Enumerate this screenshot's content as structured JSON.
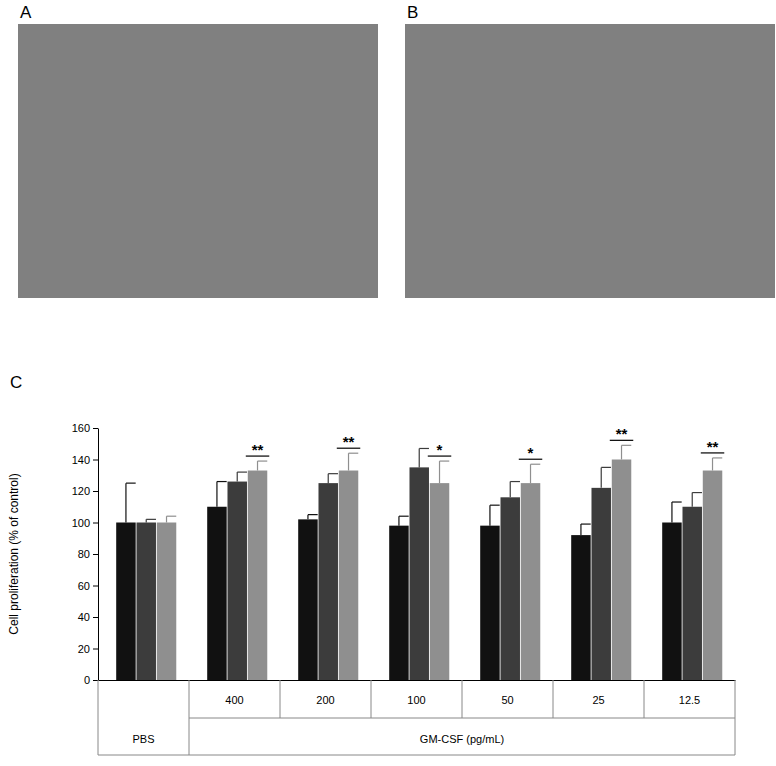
{
  "panel_labels": [
    "A",
    "B",
    "C"
  ],
  "chart_data": {
    "type": "bar",
    "y_label": "Cell proliferation (% of control)",
    "group_label": "GM-CSF (pg/mL)",
    "categories": [
      "PBS",
      "400",
      "200",
      "100",
      "50",
      "25",
      "12.5"
    ],
    "series": [
      {
        "color": "#111111",
        "values": [
          100,
          110,
          102,
          98,
          98,
          92,
          100
        ],
        "errors": [
          25,
          16,
          3,
          6,
          13,
          7,
          13
        ]
      },
      {
        "color": "#3c3c3c",
        "values": [
          100,
          126,
          125,
          135,
          116,
          122,
          110
        ],
        "errors": [
          2,
          6,
          6,
          12,
          10,
          13,
          9
        ]
      },
      {
        "color": "#8f8f8f",
        "values": [
          100,
          133,
          133,
          125,
          125,
          140,
          133
        ],
        "errors": [
          4,
          6,
          11,
          14,
          12,
          9,
          8
        ]
      }
    ],
    "annotations": [
      {
        "category": 1,
        "series": 2,
        "text": "**"
      },
      {
        "category": 2,
        "series": 2,
        "text": "**"
      },
      {
        "category": 3,
        "series": 2,
        "text": "*"
      },
      {
        "category": 4,
        "series": 2,
        "text": "*"
      },
      {
        "category": 5,
        "series": 2,
        "text": "**"
      },
      {
        "category": 6,
        "series": 2,
        "text": "**"
      }
    ],
    "ylim": [
      0,
      160
    ],
    "yticks": [
      0,
      20,
      40,
      60,
      80,
      100,
      120,
      140,
      160
    ],
    "grid": false
  }
}
